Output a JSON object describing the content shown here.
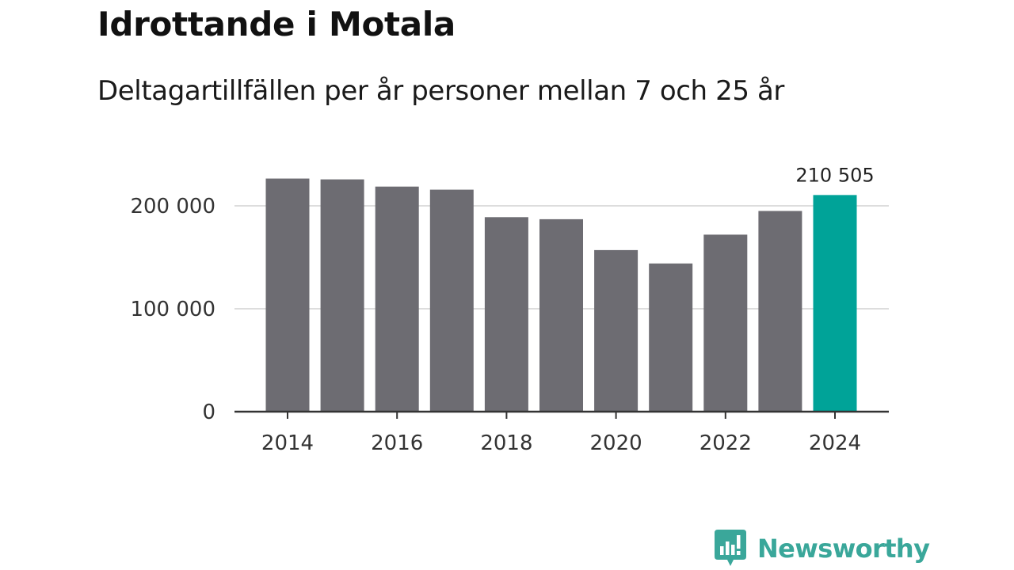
{
  "header": {
    "title": "Idrottande i Motala",
    "subtitle": "Deltagartillfällen per år personer mellan 7 och 25 år"
  },
  "chart_data": {
    "type": "bar",
    "title": "Idrottande i Motala",
    "subtitle": "Deltagartillfällen per år personer mellan 7 och 25 år",
    "xlabel": "",
    "ylabel": "",
    "categories": [
      "2014",
      "2015",
      "2016",
      "2017",
      "2018",
      "2019",
      "2020",
      "2021",
      "2022",
      "2023",
      "2024"
    ],
    "values": [
      226500,
      225700,
      218700,
      215700,
      189000,
      187000,
      157000,
      144000,
      172000,
      195000,
      210505
    ],
    "ylim": [
      0,
      240000
    ],
    "yticks": [
      0,
      100000,
      200000
    ],
    "ytick_labels": [
      "0",
      "100 000",
      "200 000"
    ],
    "xticks": [
      "2014",
      "2016",
      "2018",
      "2020",
      "2022",
      "2024"
    ],
    "grid": true,
    "highlight_index": 10,
    "highlight_label": "210 505",
    "colors": {
      "bar": "#6d6c72",
      "highlight": "#00a398",
      "grid": "#dddddd",
      "axis": "#333333"
    }
  },
  "branding": {
    "name": "Newsworthy",
    "color": "#3aa79a",
    "icon": "newsworthy-logo-icon"
  }
}
